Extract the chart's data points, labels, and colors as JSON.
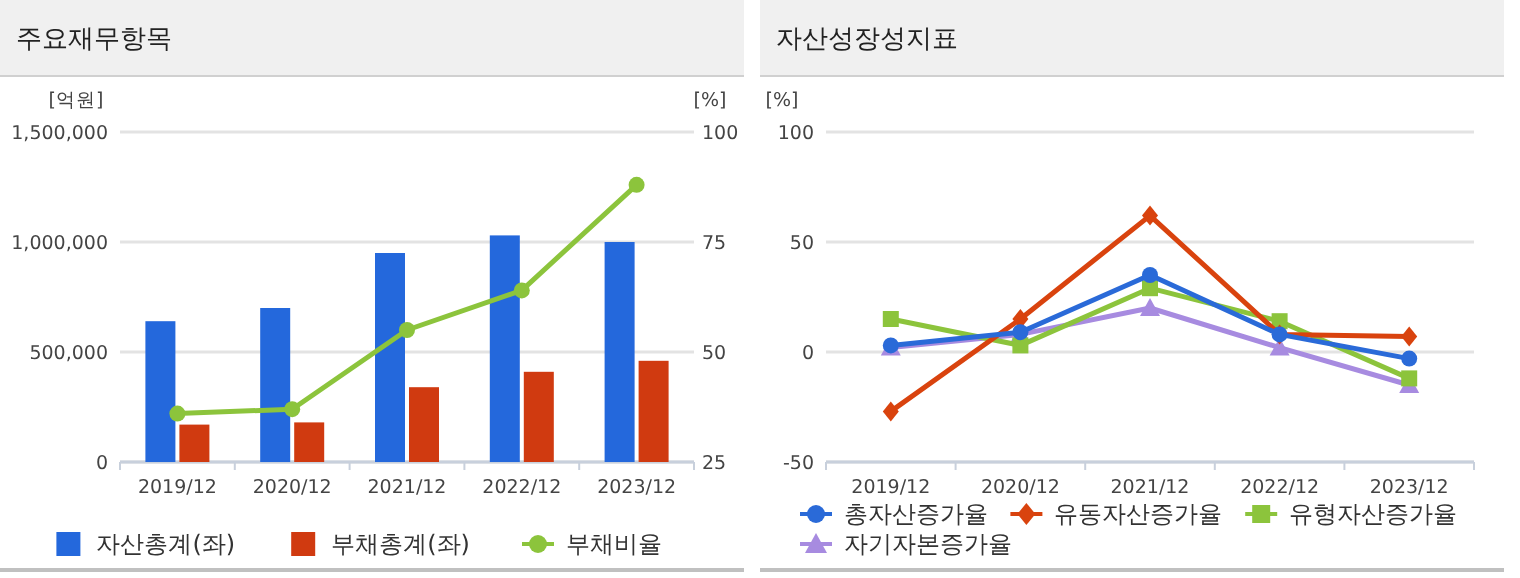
{
  "chart_data": [
    {
      "type": "bar",
      "title": "주요재무항목",
      "ylabel": "[억원]",
      "y2label": "[%]",
      "categories": [
        "2019/12",
        "2020/12",
        "2021/12",
        "2022/12",
        "2023/12"
      ],
      "series": [
        {
          "name": "자산총계(좌)",
          "color": "#2468dc",
          "values": [
            640000,
            700000,
            950000,
            1030000,
            1000000
          ]
        },
        {
          "name": "부채총계(좌)",
          "color": "#d03a10",
          "values": [
            170000,
            180000,
            340000,
            410000,
            460000
          ]
        },
        {
          "name": "부채비율",
          "type": "line",
          "axis": "y2",
          "marker": "circle",
          "color": "#8cc43c",
          "values": [
            36,
            37,
            55,
            64,
            88
          ]
        }
      ],
      "ylim": [
        0,
        1500000
      ],
      "yticks": [
        {
          "value": 0,
          "label": "0"
        },
        {
          "value": 500000,
          "label": "500,000"
        },
        {
          "value": 1000000,
          "label": "1,000,000"
        },
        {
          "value": 1500000,
          "label": "1,500,000"
        }
      ],
      "y2lim": [
        25,
        100
      ],
      "y2ticks": [
        25,
        50,
        75,
        100
      ],
      "grid": "y",
      "legend": "bottom"
    },
    {
      "type": "line",
      "title": "자산성장성지표",
      "ylabel": "[%]",
      "categories": [
        "2019/12",
        "2020/12",
        "2021/12",
        "2022/12",
        "2023/12"
      ],
      "series": [
        {
          "name": "총자산증가율",
          "color": "#2a6ad8",
          "marker": "circle",
          "values": [
            3,
            9,
            35,
            8,
            -3
          ]
        },
        {
          "name": "유동자산증가율",
          "color": "#d9430e",
          "marker": "diamond",
          "values": [
            -27,
            15,
            62,
            8,
            7
          ]
        },
        {
          "name": "유형자산증가율",
          "color": "#8cc43c",
          "marker": "square",
          "values": [
            15,
            3,
            29,
            14,
            -12
          ]
        },
        {
          "name": "자기자본증가율",
          "color": "#a78be0",
          "marker": "triangle",
          "values": [
            2,
            8,
            20,
            2,
            -15
          ]
        }
      ],
      "ylim": [
        -50,
        100
      ],
      "yticks": [
        -50,
        0,
        50,
        100
      ],
      "grid": "y",
      "legend": "bottom"
    }
  ]
}
